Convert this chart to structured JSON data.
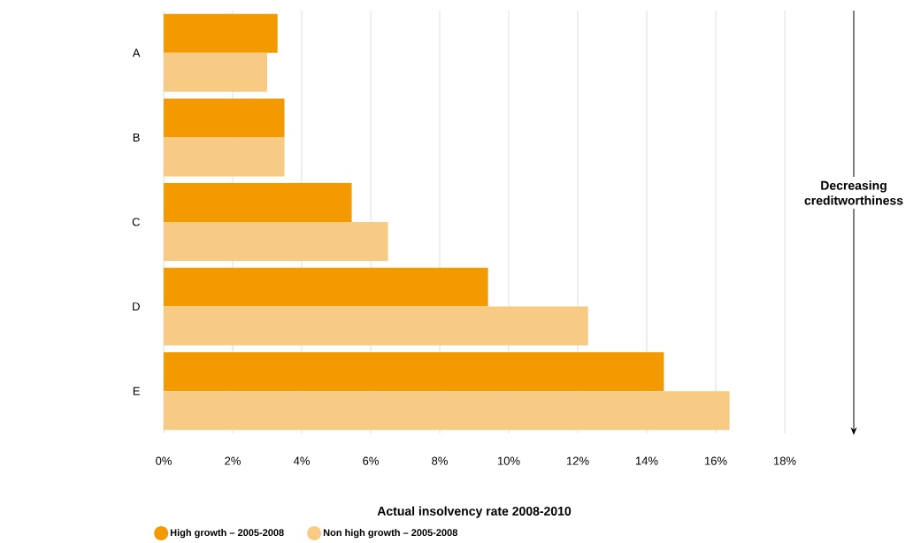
{
  "chart_data": {
    "type": "bar",
    "orientation": "horizontal",
    "xlabel": "Actual insolvency rate 2008-2010",
    "categories": [
      "A",
      "B",
      "C",
      "D",
      "E"
    ],
    "series": [
      {
        "name": "High growth – 2005-2008",
        "color": "#f39a00",
        "values": [
          3.3,
          3.5,
          5.45,
          9.4,
          14.5
        ]
      },
      {
        "name": "Non high growth – 2005-2008",
        "color": "#f8cb84",
        "values": [
          3.0,
          3.5,
          6.5,
          12.3,
          16.4
        ]
      }
    ],
    "xlim": [
      0,
      18
    ],
    "xticks": [
      {
        "value": 0,
        "label": "0%"
      },
      {
        "value": 2,
        "label": "2%"
      },
      {
        "value": 4,
        "label": "4%"
      },
      {
        "value": 6,
        "label": "6%"
      },
      {
        "value": 8,
        "label": "8%"
      },
      {
        "value": 10,
        "label": "10%"
      },
      {
        "value": 12,
        "label": "12%"
      },
      {
        "value": 14,
        "label": "14%"
      },
      {
        "value": 16,
        "label": "16%"
      },
      {
        "value": 18,
        "label": "18%"
      }
    ],
    "grid": "x",
    "legend": "bottom left",
    "annotations": [
      "Decreasing creditworthiness"
    ]
  }
}
